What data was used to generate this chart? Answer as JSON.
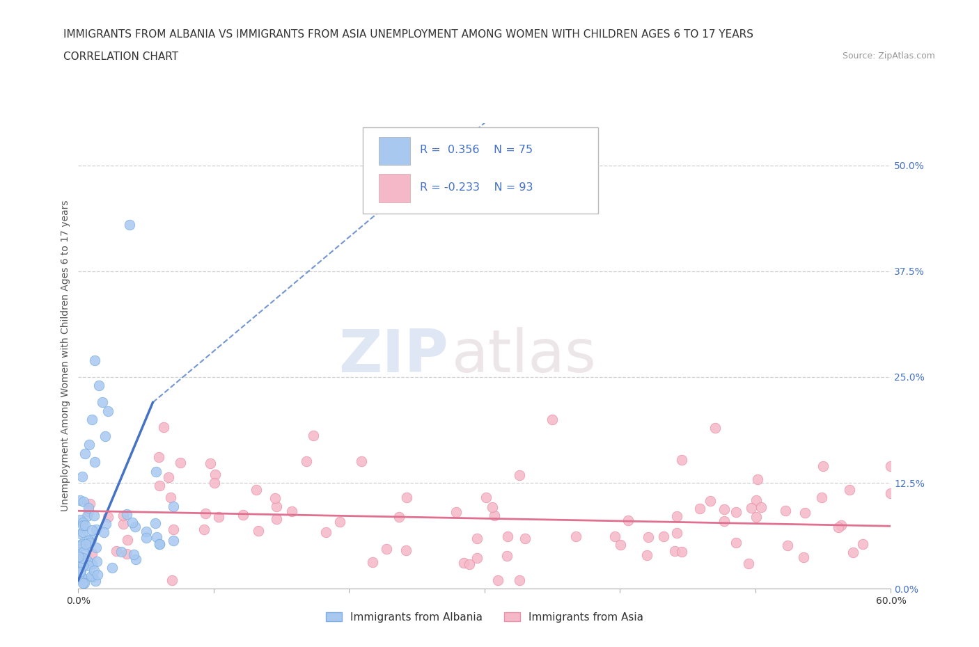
{
  "title_line1": "IMMIGRANTS FROM ALBANIA VS IMMIGRANTS FROM ASIA UNEMPLOYMENT AMONG WOMEN WITH CHILDREN AGES 6 TO 17 YEARS",
  "title_line2": "CORRELATION CHART",
  "source_text": "Source: ZipAtlas.com",
  "ylabel": "Unemployment Among Women with Children Ages 6 to 17 years",
  "watermark_zip": "ZIP",
  "watermark_atlas": "atlas",
  "xlim": [
    0.0,
    0.6
  ],
  "ylim": [
    0.0,
    0.55
  ],
  "xticklabels": [
    "0.0%",
    "",
    "",
    "",
    "",
    "",
    "60.0%"
  ],
  "yticklabels_right": [
    "0.0%",
    "12.5%",
    "25.0%",
    "37.5%",
    "50.0%"
  ],
  "albania_color": "#a8c8f0",
  "albania_edge_color": "#7aaee0",
  "asia_color": "#f5b8c8",
  "asia_edge_color": "#e890a8",
  "albania_line_color": "#4472c4",
  "asia_line_color": "#e07090",
  "legend_label_albania": "Immigrants from Albania",
  "legend_label_asia": "Immigrants from Asia",
  "title_fontsize": 11,
  "axis_label_fontsize": 10,
  "tick_fontsize": 10,
  "background_color": "#ffffff",
  "grid_color": "#bbbbbb"
}
